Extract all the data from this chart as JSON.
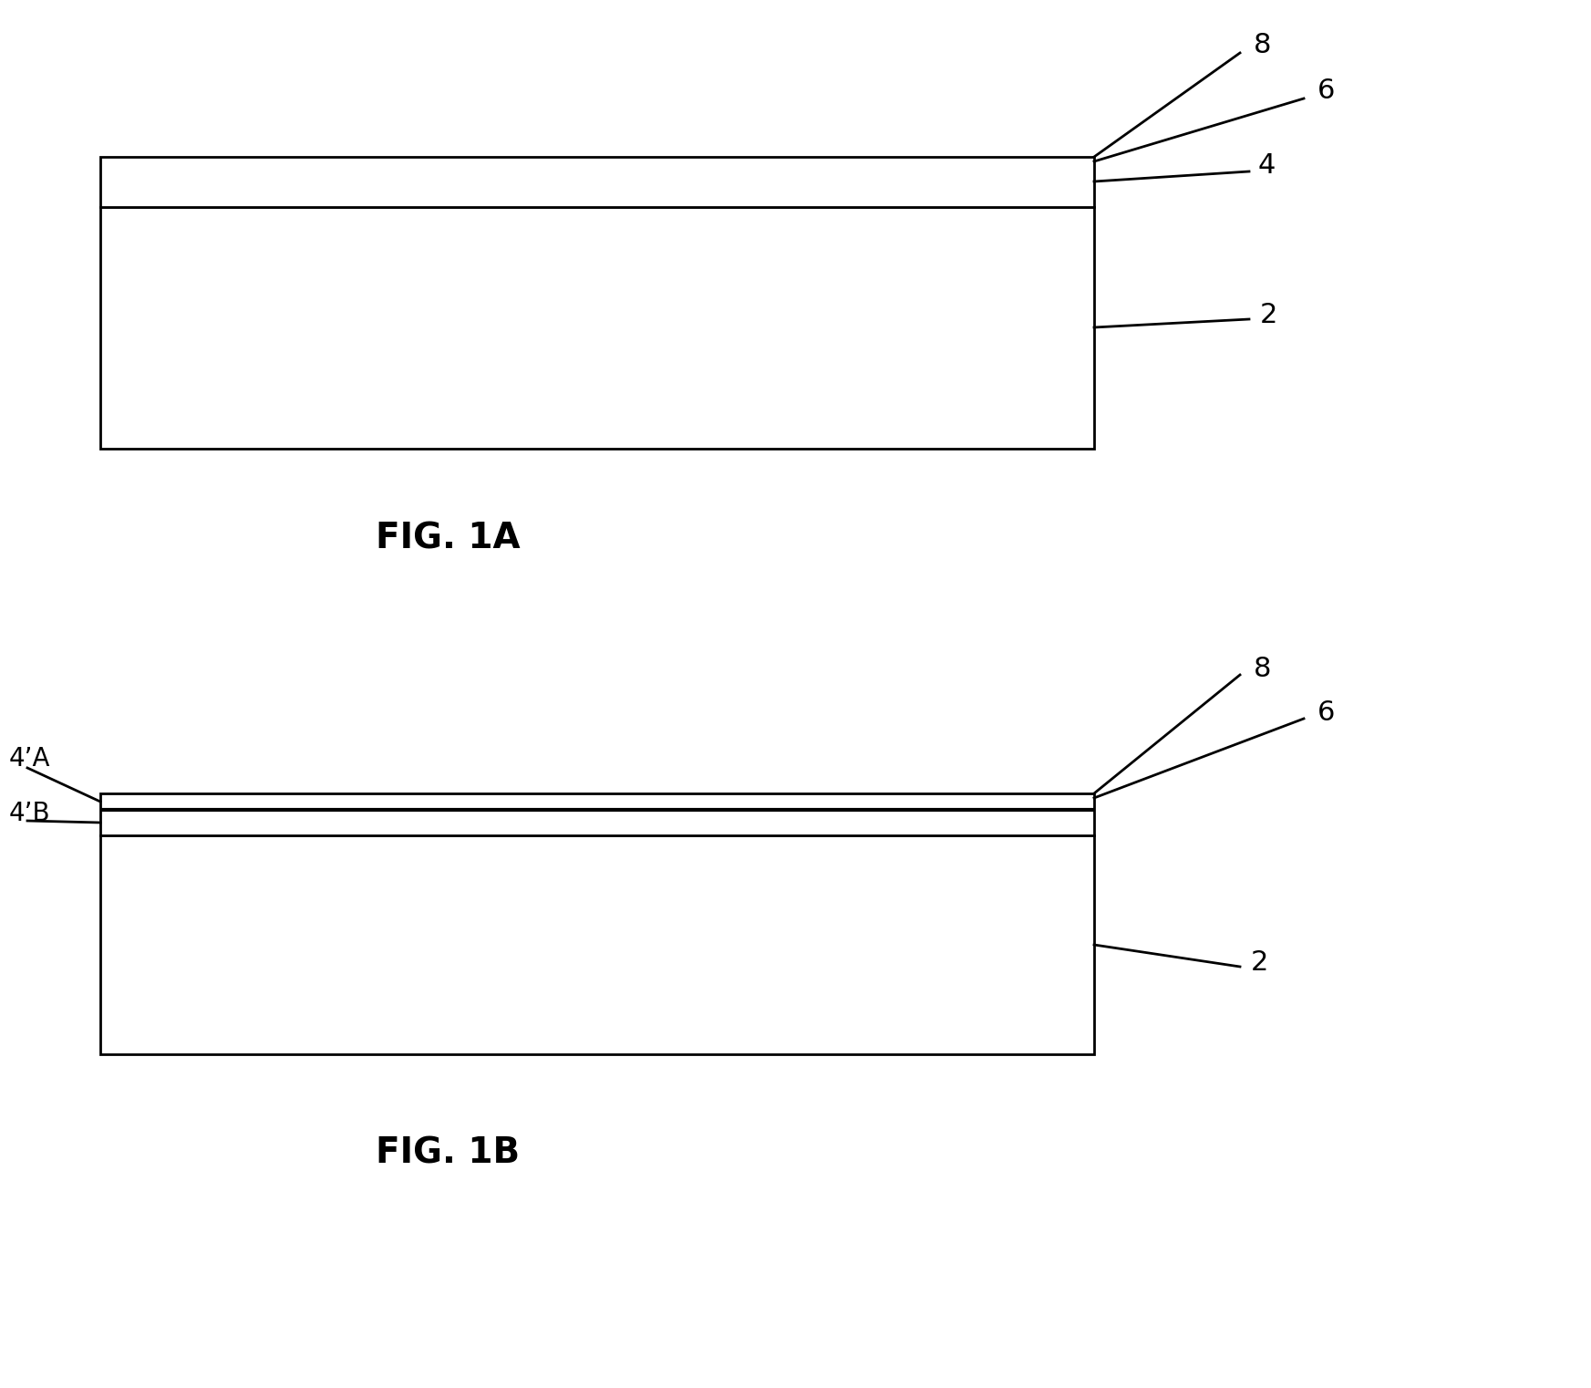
{
  "fig_title_a": "FIG. 1A",
  "fig_title_b": "FIG. 1B",
  "bg_color": "#ffffff",
  "line_color": "#000000",
  "figsize": [
    17.45,
    15.22
  ],
  "dpi": 100
}
